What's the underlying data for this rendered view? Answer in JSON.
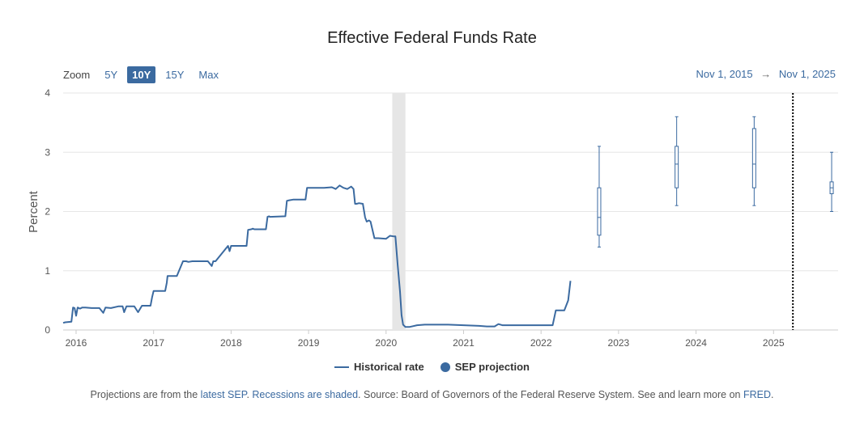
{
  "title": "Effective Federal Funds Rate",
  "zoom": {
    "label": "Zoom",
    "options": [
      "5Y",
      "10Y",
      "15Y",
      "Max"
    ],
    "active": "10Y"
  },
  "range": {
    "start": "Nov 1, 2015",
    "arrow": "→",
    "end": "Nov 1, 2025"
  },
  "legend": {
    "historical": "Historical rate",
    "projection": "SEP projection"
  },
  "footer": {
    "p1": "Projections are from the ",
    "link1": "latest SEP",
    "p2": ". ",
    "link2": "Recessions are shaded",
    "p3": ". Source: Board of Governors of the Federal Reserve System. See and learn more on ",
    "link3": "FRED",
    "p4": "."
  },
  "colors": {
    "series": "#3b6aa0",
    "recession": "#e6e6e6",
    "grid": "#e6e6e6"
  },
  "chart_data": {
    "type": "line",
    "ylabel": "Percent",
    "xlim": [
      2015.833,
      2025.833
    ],
    "ylim": [
      0,
      4
    ],
    "yticks": [
      "0",
      "1",
      "2",
      "3",
      "4"
    ],
    "xticks": [
      "2016",
      "2017",
      "2018",
      "2019",
      "2020",
      "2021",
      "2022",
      "2023",
      "2024",
      "2025"
    ],
    "grid": true,
    "recession": [
      2020.08,
      2020.25
    ],
    "current_marker_x": 2025.25,
    "series": [
      {
        "name": "Historical rate",
        "x": [
          2015.833,
          2015.86,
          2015.94,
          2015.96,
          2015.98,
          2016.0,
          2016.02,
          2016.05,
          2016.08,
          2016.12,
          2016.2,
          2016.3,
          2016.35,
          2016.38,
          2016.45,
          2016.55,
          2016.6,
          2016.62,
          2016.65,
          2016.75,
          2016.8,
          2016.85,
          2016.9,
          2016.96,
          2016.98,
          2017.0,
          2017.05,
          2017.15,
          2017.17,
          2017.18,
          2017.2,
          2017.3,
          2017.38,
          2017.42,
          2017.45,
          2017.5,
          2017.55,
          2017.7,
          2017.75,
          2017.77,
          2017.8,
          2017.96,
          2017.98,
          2018.0,
          2018.2,
          2018.22,
          2018.26,
          2018.28,
          2018.3,
          2018.45,
          2018.47,
          2018.49,
          2018.5,
          2018.7,
          2018.72,
          2018.75,
          2018.8,
          2018.96,
          2018.98,
          2019.0,
          2019.2,
          2019.3,
          2019.35,
          2019.4,
          2019.45,
          2019.5,
          2019.55,
          2019.58,
          2019.6,
          2019.62,
          2019.65,
          2019.7,
          2019.73,
          2019.75,
          2019.78,
          2019.8,
          2019.85,
          2019.88,
          2019.9,
          2020.0,
          2020.05,
          2020.1,
          2020.12,
          2020.15,
          2020.18,
          2020.2,
          2020.22,
          2020.25,
          2020.3,
          2020.4,
          2020.5,
          2020.6,
          2020.8,
          2021.0,
          2021.2,
          2021.3,
          2021.4,
          2021.45,
          2021.5,
          2021.8,
          2022.0,
          2022.15,
          2022.19,
          2022.21,
          2022.3,
          2022.35,
          2022.38
        ],
        "y": [
          0.12,
          0.13,
          0.14,
          0.38,
          0.37,
          0.24,
          0.38,
          0.36,
          0.38,
          0.38,
          0.37,
          0.37,
          0.29,
          0.38,
          0.37,
          0.4,
          0.4,
          0.3,
          0.4,
          0.4,
          0.3,
          0.41,
          0.41,
          0.41,
          0.55,
          0.66,
          0.66,
          0.66,
          0.8,
          0.91,
          0.91,
          0.91,
          1.16,
          1.16,
          1.15,
          1.16,
          1.16,
          1.16,
          1.08,
          1.16,
          1.16,
          1.42,
          1.33,
          1.42,
          1.42,
          1.69,
          1.7,
          1.71,
          1.7,
          1.7,
          1.91,
          1.92,
          1.91,
          1.92,
          2.18,
          2.19,
          2.2,
          2.2,
          2.4,
          2.4,
          2.4,
          2.41,
          2.38,
          2.44,
          2.4,
          2.38,
          2.42,
          2.38,
          2.13,
          2.13,
          2.14,
          2.13,
          1.9,
          1.83,
          1.85,
          1.83,
          1.55,
          1.55,
          1.55,
          1.54,
          1.59,
          1.58,
          1.58,
          1.1,
          0.65,
          0.25,
          0.09,
          0.05,
          0.05,
          0.08,
          0.09,
          0.09,
          0.09,
          0.08,
          0.07,
          0.06,
          0.06,
          0.1,
          0.08,
          0.08,
          0.08,
          0.08,
          0.33,
          0.33,
          0.33,
          0.5,
          0.83
        ]
      }
    ],
    "projections": [
      {
        "x": 2022.75,
        "low": 1.4,
        "q1": 1.6,
        "median": 1.9,
        "q3": 2.4,
        "high": 3.1
      },
      {
        "x": 2023.75,
        "low": 2.1,
        "q1": 2.4,
        "median": 2.8,
        "q3": 3.1,
        "high": 3.6
      },
      {
        "x": 2024.75,
        "low": 2.1,
        "q1": 2.4,
        "median": 2.8,
        "q3": 3.4,
        "high": 3.6
      },
      {
        "x": 2025.75,
        "low": 2.0,
        "q1": 2.3,
        "median": 2.4,
        "q3": 2.5,
        "high": 3.0
      }
    ]
  }
}
